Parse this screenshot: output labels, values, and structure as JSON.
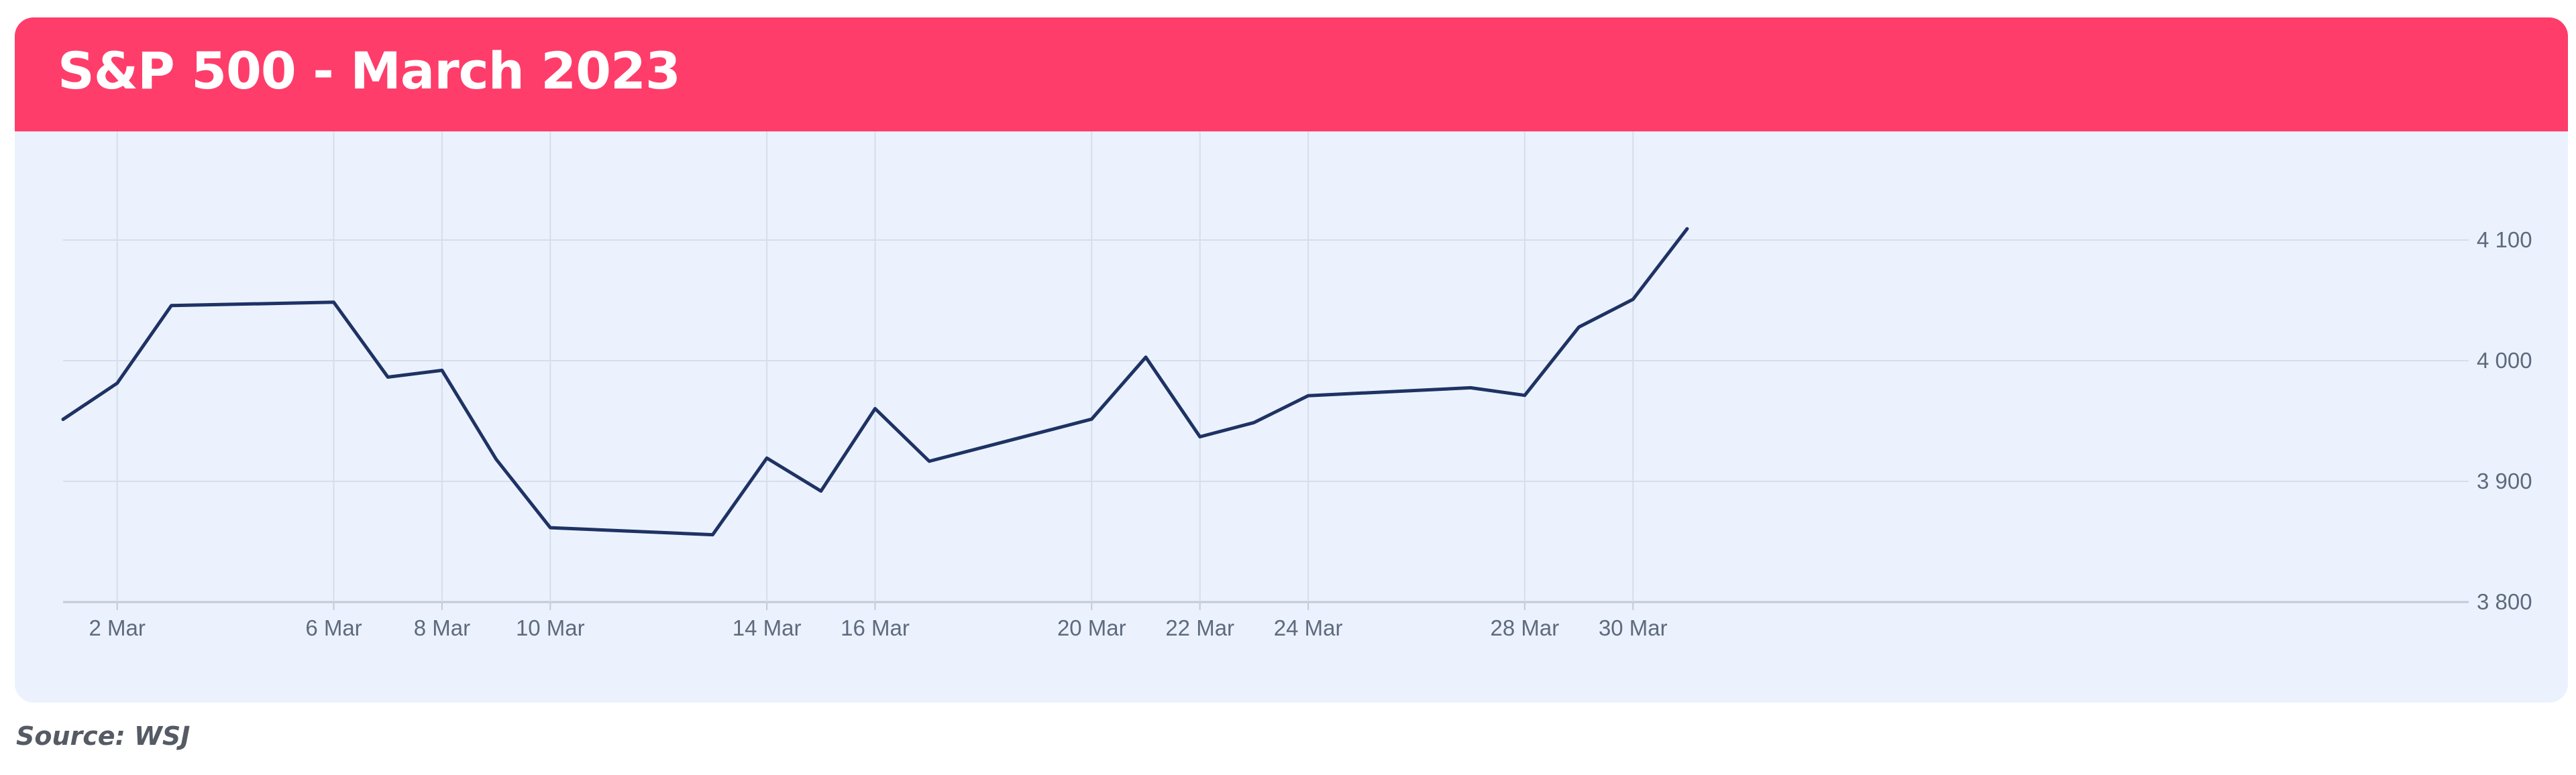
{
  "header": {
    "title": "S&P 500 - March 2023"
  },
  "source": "Source: WSJ",
  "colors": {
    "header": "#ff3d6a",
    "plot_background": "#ebf2fd",
    "line": "#1f3264",
    "grid": "#d6deea"
  },
  "chart_data": {
    "type": "line",
    "title": "S&P 500 - March 2023",
    "xlabel": "",
    "ylabel": "",
    "x": [
      "2023-03-01",
      "2023-03-02",
      "2023-03-03",
      "2023-03-06",
      "2023-03-07",
      "2023-03-08",
      "2023-03-09",
      "2023-03-10",
      "2023-03-13",
      "2023-03-14",
      "2023-03-15",
      "2023-03-16",
      "2023-03-17",
      "2023-03-20",
      "2023-03-21",
      "2023-03-22",
      "2023-03-23",
      "2023-03-24",
      "2023-03-27",
      "2023-03-28",
      "2023-03-29",
      "2023-03-30",
      "2023-03-31"
    ],
    "series": [
      {
        "values": [
          3951.39,
          3981.35,
          4045.64,
          4048.42,
          3986.37,
          3992.01,
          3918.32,
          3861.59,
          3855.76,
          3919.29,
          3891.93,
          3960.28,
          3916.64,
          3951.57,
          4002.87,
          3936.97,
          3948.72,
          3970.99,
          3977.53,
          3971.27,
          4027.81,
          4050.83,
          4109.31
        ]
      }
    ],
    "x_tick_labels": [
      "2 Mar",
      "6 Mar",
      "8 Mar",
      "10 Mar",
      "14 Mar",
      "16 Mar",
      "20 Mar",
      "22 Mar",
      "24 Mar",
      "28 Mar",
      "30 Mar"
    ],
    "y_ticks": [
      3800,
      3900,
      4000,
      4100
    ],
    "y_tick_labels": [
      "3 800",
      "3 900",
      "4 000",
      "4 100"
    ],
    "ylim": [
      3800,
      4190
    ],
    "y_axis_side": "right",
    "grid": true,
    "legend": "none"
  }
}
